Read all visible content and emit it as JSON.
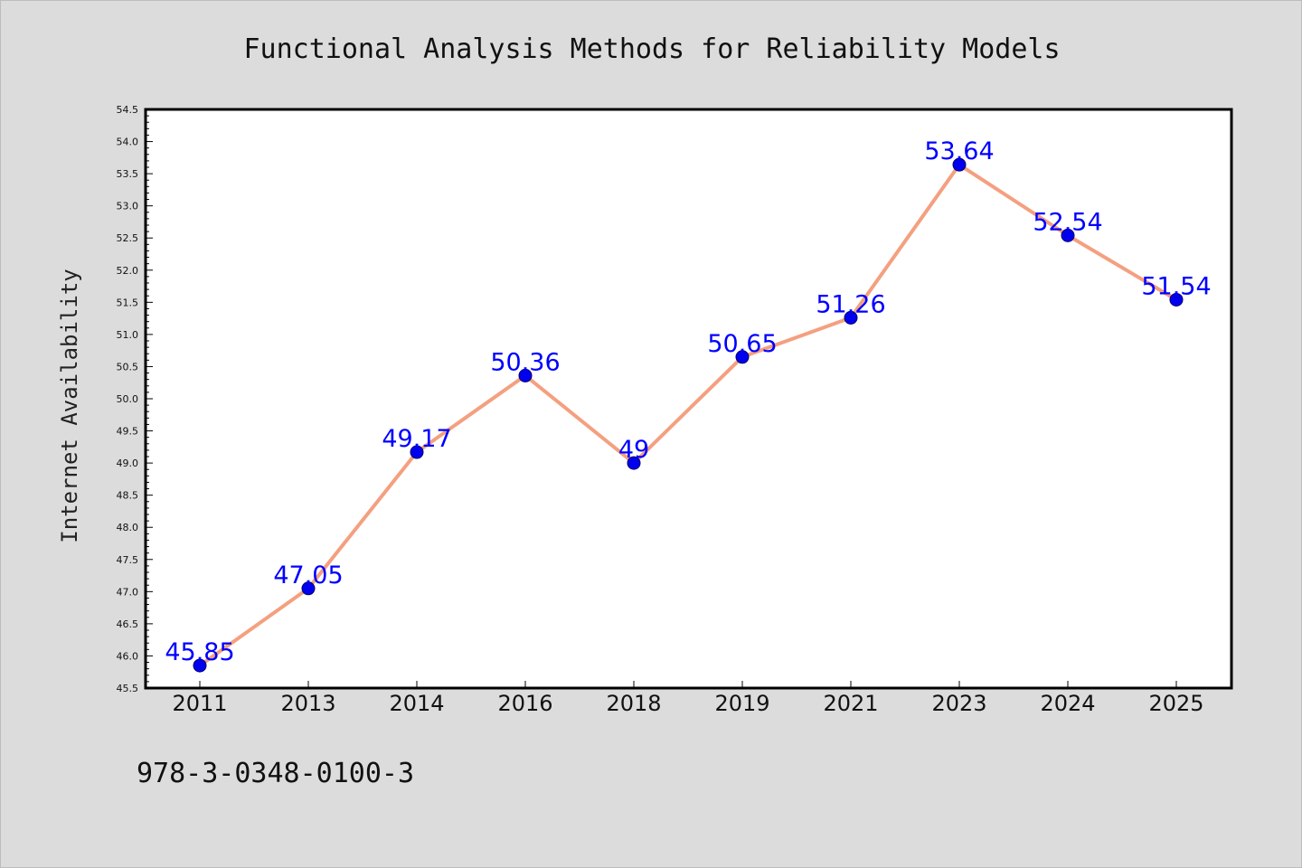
{
  "chart_data": {
    "type": "line",
    "title": "Functional Analysis Methods for Reliability Models",
    "xlabel": "",
    "ylabel": "Internet Availability",
    "categories": [
      "2011",
      "2013",
      "2014",
      "2016",
      "2018",
      "2019",
      "2021",
      "2023",
      "2024",
      "2025"
    ],
    "series": [
      {
        "values": [
          45.85,
          47.05,
          49.17,
          50.36,
          49,
          50.65,
          51.26,
          53.64,
          52.54,
          51.54
        ],
        "labels": [
          "45.85",
          "47.05",
          "49.17",
          "50.36",
          "49",
          "50.65",
          "51.26",
          "53.64",
          "52.54",
          "51.54"
        ],
        "line_color": "#f4a080",
        "marker_color": "#0000ee",
        "label_color": "#0000ff"
      }
    ],
    "ylim": [
      45.5,
      54.5
    ],
    "yticks": [
      "45.5",
      "46.0",
      "46.5",
      "47.0",
      "47.5",
      "48.0",
      "48.5",
      "49.0",
      "49.5",
      "50.0",
      "50.5",
      "51.0",
      "51.5",
      "52.0",
      "52.5",
      "53.0",
      "53.5",
      "54.0",
      "54.5"
    ],
    "grid": false,
    "legend": "none"
  },
  "footer": {
    "isbn": "978-3-0348-0100-3"
  },
  "colors": {
    "background": "#dcdcdc",
    "plot_area": "#ffffff",
    "axis": "#000000"
  }
}
